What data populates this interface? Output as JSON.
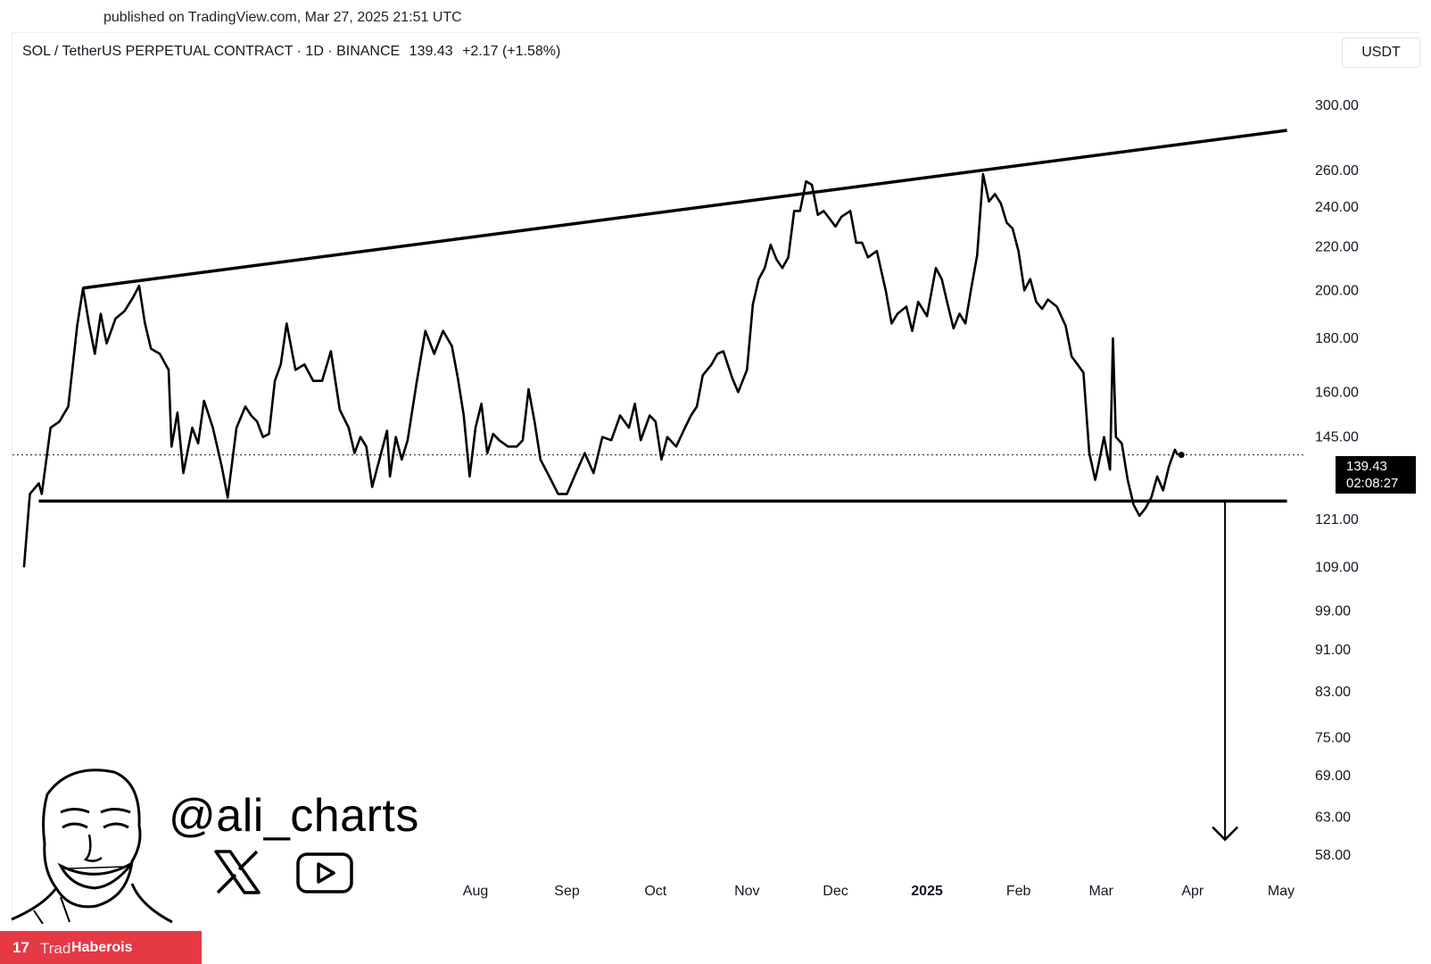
{
  "header": {
    "published": "published on TradingView.com, Mar 27, 2025 21:51 UTC"
  },
  "symbol": {
    "name": "SOL / TetherUS PERPETUAL CONTRACT · 1D · BINANCE",
    "price": "139.43",
    "change": "+2.17 (+1.58%)"
  },
  "currency": "USDT",
  "price_tag": {
    "price": "139.43",
    "countdown": "02:08:27"
  },
  "watermark": {
    "handle": "@ali_charts",
    "x_icon": "x-logo-icon",
    "youtube_icon": "youtube-play-icon"
  },
  "banner": {
    "logo": "17",
    "text": "Trad",
    "overlay": "Haberois"
  },
  "colors": {
    "line": "#000000",
    "banner": "#e53945",
    "tag": "#000000"
  },
  "chart_data": {
    "type": "line",
    "title": "",
    "xlabel": "",
    "ylabel": "",
    "y_scale": "log",
    "yticks": [
      "300.00",
      "260.00",
      "240.00",
      "220.00",
      "200.00",
      "180.00",
      "160.00",
      "145.00",
      "121.00",
      "109.00",
      "99.00",
      "91.00",
      "83.00",
      "75.00",
      "69.00",
      "63.00",
      "58.00"
    ],
    "xticks": [
      {
        "label": "Aug",
        "date": "2024-08-01"
      },
      {
        "label": "Sep",
        "date": "2024-09-01"
      },
      {
        "label": "Oct",
        "date": "2024-10-01"
      },
      {
        "label": "Nov",
        "date": "2024-11-01"
      },
      {
        "label": "Dec",
        "date": "2024-12-01"
      },
      {
        "label": "2025",
        "date": "2025-01-01",
        "bold": true
      },
      {
        "label": "Feb",
        "date": "2025-02-01"
      },
      {
        "label": "Mar",
        "date": "2025-03-01"
      },
      {
        "label": "Apr",
        "date": "2025-04-01"
      },
      {
        "label": "May",
        "date": "2025-05-01"
      }
    ],
    "last_price": 139.43,
    "series": [
      {
        "points": [
          [
            "2024-03-01",
            109
          ],
          [
            "2024-03-03",
            128
          ],
          [
            "2024-03-06",
            131
          ],
          [
            "2024-03-07",
            128
          ],
          [
            "2024-03-10",
            148
          ],
          [
            "2024-03-13",
            150
          ],
          [
            "2024-03-16",
            155
          ],
          [
            "2024-03-19",
            185
          ],
          [
            "2024-03-21",
            201
          ],
          [
            "2024-03-23",
            186
          ],
          [
            "2024-03-25",
            174
          ],
          [
            "2024-03-27",
            190
          ],
          [
            "2024-03-29",
            178
          ],
          [
            "2024-04-01",
            188
          ],
          [
            "2024-04-04",
            191
          ],
          [
            "2024-04-07",
            197
          ],
          [
            "2024-04-09",
            202
          ],
          [
            "2024-04-11",
            186
          ],
          [
            "2024-04-13",
            176
          ],
          [
            "2024-04-16",
            174
          ],
          [
            "2024-04-19",
            168
          ],
          [
            "2024-04-20",
            142
          ],
          [
            "2024-04-22",
            153
          ],
          [
            "2024-04-24",
            134
          ],
          [
            "2024-04-27",
            148
          ],
          [
            "2024-04-29",
            143
          ],
          [
            "2024-05-01",
            157
          ],
          [
            "2024-05-04",
            148
          ],
          [
            "2024-05-07",
            136
          ],
          [
            "2024-05-09",
            127
          ],
          [
            "2024-05-12",
            148
          ],
          [
            "2024-05-15",
            155
          ],
          [
            "2024-05-17",
            152
          ],
          [
            "2024-05-19",
            150
          ],
          [
            "2024-05-21",
            145
          ],
          [
            "2024-05-23",
            146
          ],
          [
            "2024-05-25",
            164
          ],
          [
            "2024-05-27",
            170
          ],
          [
            "2024-05-29",
            186
          ],
          [
            "2024-06-01",
            168
          ],
          [
            "2024-06-04",
            170
          ],
          [
            "2024-06-07",
            164
          ],
          [
            "2024-06-10",
            164
          ],
          [
            "2024-06-13",
            175
          ],
          [
            "2024-06-16",
            154
          ],
          [
            "2024-06-19",
            148
          ],
          [
            "2024-06-21",
            140
          ],
          [
            "2024-06-23",
            145
          ],
          [
            "2024-06-25",
            142
          ],
          [
            "2024-06-27",
            130
          ],
          [
            "2024-06-30",
            140
          ],
          [
            "2024-07-02",
            147
          ],
          [
            "2024-07-03",
            133
          ],
          [
            "2024-07-05",
            145
          ],
          [
            "2024-07-07",
            138
          ],
          [
            "2024-07-09",
            144
          ],
          [
            "2024-07-12",
            163
          ],
          [
            "2024-07-15",
            183
          ],
          [
            "2024-07-18",
            174
          ],
          [
            "2024-07-21",
            183
          ],
          [
            "2024-07-24",
            177
          ],
          [
            "2024-07-26",
            165
          ],
          [
            "2024-07-28",
            152
          ],
          [
            "2024-07-30",
            133
          ],
          [
            "2024-08-01",
            148
          ],
          [
            "2024-08-03",
            156
          ],
          [
            "2024-08-05",
            140
          ],
          [
            "2024-08-07",
            146
          ],
          [
            "2024-08-09",
            144
          ],
          [
            "2024-08-12",
            142
          ],
          [
            "2024-08-15",
            142
          ],
          [
            "2024-08-17",
            144
          ],
          [
            "2024-08-19",
            161
          ],
          [
            "2024-08-21",
            150
          ],
          [
            "2024-08-23",
            138
          ],
          [
            "2024-08-26",
            133
          ],
          [
            "2024-08-29",
            128
          ],
          [
            "2024-09-01",
            128
          ],
          [
            "2024-09-04",
            134
          ],
          [
            "2024-09-07",
            140
          ],
          [
            "2024-09-10",
            134
          ],
          [
            "2024-09-13",
            145
          ],
          [
            "2024-09-16",
            144
          ],
          [
            "2024-09-19",
            152
          ],
          [
            "2024-09-22",
            148
          ],
          [
            "2024-09-24",
            156
          ],
          [
            "2024-09-26",
            144
          ],
          [
            "2024-09-29",
            152
          ],
          [
            "2024-10-01",
            150
          ],
          [
            "2024-10-03",
            138
          ],
          [
            "2024-10-05",
            145
          ],
          [
            "2024-10-08",
            142
          ],
          [
            "2024-10-11",
            148
          ],
          [
            "2024-10-13",
            152
          ],
          [
            "2024-10-15",
            155
          ],
          [
            "2024-10-17",
            166
          ],
          [
            "2024-10-20",
            170
          ],
          [
            "2024-10-22",
            174
          ],
          [
            "2024-10-24",
            175
          ],
          [
            "2024-10-27",
            165
          ],
          [
            "2024-10-29",
            160
          ],
          [
            "2024-11-01",
            168
          ],
          [
            "2024-11-03",
            194
          ],
          [
            "2024-11-05",
            205
          ],
          [
            "2024-11-07",
            210
          ],
          [
            "2024-11-09",
            221
          ],
          [
            "2024-11-11",
            214
          ],
          [
            "2024-11-13",
            210
          ],
          [
            "2024-11-15",
            215
          ],
          [
            "2024-11-17",
            238
          ],
          [
            "2024-11-19",
            238
          ],
          [
            "2024-11-21",
            254
          ],
          [
            "2024-11-23",
            252
          ],
          [
            "2024-11-25",
            236
          ],
          [
            "2024-11-27",
            238
          ],
          [
            "2024-11-29",
            234
          ],
          [
            "2024-12-01",
            230
          ],
          [
            "2024-12-03",
            235
          ],
          [
            "2024-12-06",
            238
          ],
          [
            "2024-12-08",
            222
          ],
          [
            "2024-12-10",
            222
          ],
          [
            "2024-12-12",
            215
          ],
          [
            "2024-12-15",
            218
          ],
          [
            "2024-12-18",
            200
          ],
          [
            "2024-12-20",
            186
          ],
          [
            "2024-12-22",
            190
          ],
          [
            "2024-12-25",
            193
          ],
          [
            "2024-12-27",
            183
          ],
          [
            "2024-12-29",
            195
          ],
          [
            "2025-01-01",
            189
          ],
          [
            "2025-01-04",
            210
          ],
          [
            "2025-01-06",
            205
          ],
          [
            "2025-01-08",
            194
          ],
          [
            "2025-01-10",
            184
          ],
          [
            "2025-01-12",
            190
          ],
          [
            "2025-01-14",
            186
          ],
          [
            "2025-01-16",
            201
          ],
          [
            "2025-01-18",
            216
          ],
          [
            "2025-01-20",
            258
          ],
          [
            "2025-01-22",
            243
          ],
          [
            "2025-01-24",
            247
          ],
          [
            "2025-01-26",
            242
          ],
          [
            "2025-01-28",
            232
          ],
          [
            "2025-01-30",
            229
          ],
          [
            "2025-02-01",
            218
          ],
          [
            "2025-02-03",
            200
          ],
          [
            "2025-02-05",
            205
          ],
          [
            "2025-02-07",
            195
          ],
          [
            "2025-02-09",
            192
          ],
          [
            "2025-02-11",
            196
          ],
          [
            "2025-02-14",
            193
          ],
          [
            "2025-02-17",
            185
          ],
          [
            "2025-02-19",
            173
          ],
          [
            "2025-02-21",
            170
          ],
          [
            "2025-02-23",
            167
          ],
          [
            "2025-02-25",
            140
          ],
          [
            "2025-02-27",
            132
          ],
          [
            "2025-02-28",
            136
          ],
          [
            "2025-03-02",
            145
          ],
          [
            "2025-03-04",
            135
          ],
          [
            "2025-03-05",
            180
          ],
          [
            "2025-03-06",
            145
          ],
          [
            "2025-03-08",
            143
          ],
          [
            "2025-03-10",
            132
          ],
          [
            "2025-03-12",
            125
          ],
          [
            "2025-03-14",
            122
          ],
          [
            "2025-03-16",
            124
          ],
          [
            "2025-03-18",
            127
          ],
          [
            "2025-03-20",
            133
          ],
          [
            "2025-03-22",
            129
          ],
          [
            "2025-03-24",
            136
          ],
          [
            "2025-03-26",
            141
          ],
          [
            "2025-03-27",
            139.43
          ]
        ]
      }
    ],
    "annotations": [
      {
        "type": "trendline",
        "points": [
          [
            "2024-03-21",
            201
          ],
          [
            "2025-05-03",
            284
          ]
        ]
      },
      {
        "type": "trendline",
        "points": [
          [
            "2024-03-06",
            126
          ],
          [
            "2025-05-03",
            126
          ]
        ]
      },
      {
        "type": "arrow",
        "points": [
          [
            "2025-04-12",
            126
          ],
          [
            "2025-04-12",
            60
          ]
        ]
      }
    ]
  }
}
